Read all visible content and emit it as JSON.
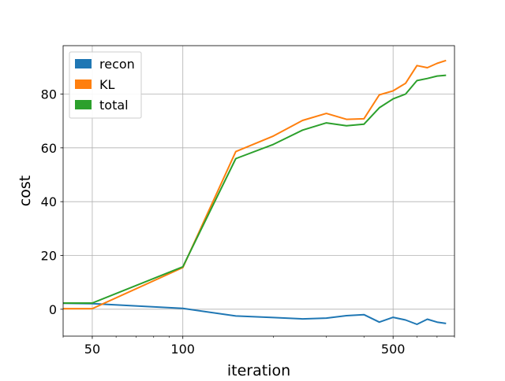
{
  "chart_data": {
    "type": "line",
    "title": "",
    "xlabel": "iteration",
    "ylabel": "cost",
    "x_scale": "log",
    "xlim": [
      40,
      800
    ],
    "ylim": [
      -10,
      98
    ],
    "grid": true,
    "legend_position": "upper-left",
    "x_ticks_major": [
      50,
      100,
      500
    ],
    "x_ticks_minor": [
      40,
      60,
      70,
      80,
      90,
      200,
      300,
      400,
      600,
      700,
      800
    ],
    "y_ticks": [
      0,
      20,
      40,
      60,
      80
    ],
    "x": [
      40,
      50,
      100,
      150,
      200,
      250,
      300,
      350,
      400,
      450,
      500,
      550,
      600,
      650,
      700,
      750
    ],
    "series": [
      {
        "name": "recon",
        "color": "#1f77b4",
        "values": [
          2.2,
          2.1,
          0.3,
          -2.5,
          -3.1,
          -3.6,
          -3.3,
          -2.4,
          -2.0,
          -4.8,
          -3.0,
          -4.0,
          -5.6,
          -3.7,
          -4.8,
          -5.3
        ]
      },
      {
        "name": "KL",
        "color": "#ff7f0e",
        "values": [
          0.2,
          0.2,
          15.5,
          58.6,
          64.4,
          70.2,
          72.8,
          70.6,
          70.8,
          79.7,
          81.2,
          84.0,
          90.6,
          89.8,
          91.4,
          92.5
        ]
      },
      {
        "name": "total",
        "color": "#2ca02c",
        "values": [
          2.3,
          2.3,
          15.8,
          56.0,
          61.3,
          66.6,
          69.3,
          68.2,
          68.8,
          74.9,
          78.2,
          80.0,
          85.0,
          85.8,
          86.7,
          87.0
        ]
      }
    ]
  }
}
